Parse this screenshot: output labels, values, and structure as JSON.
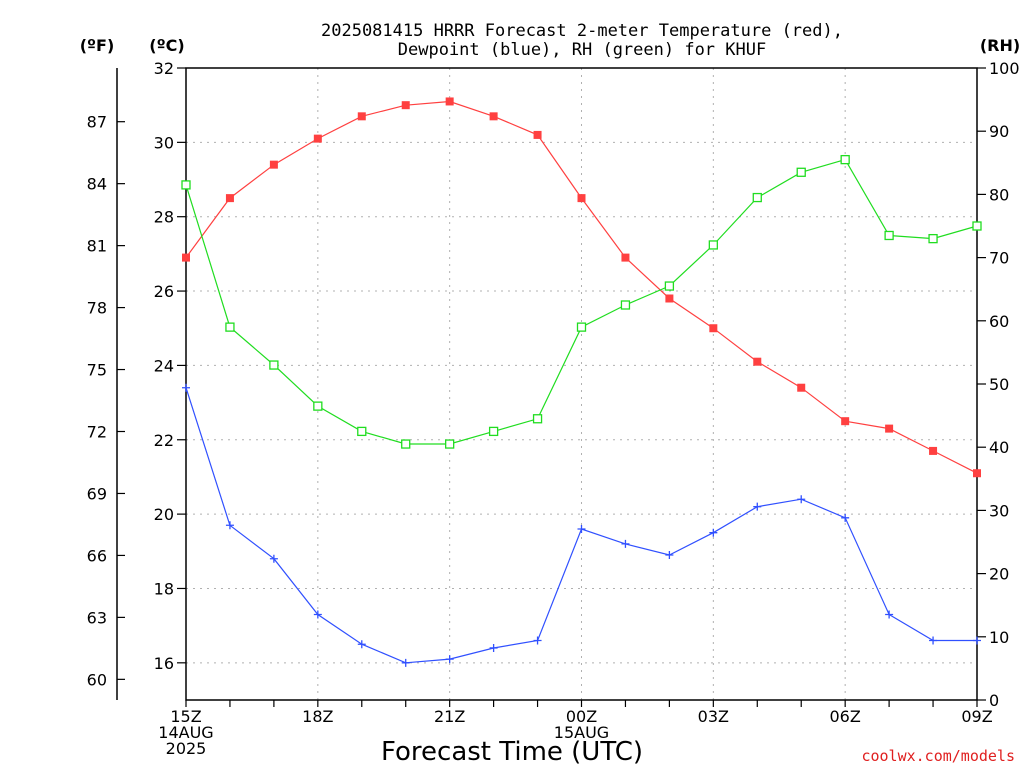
{
  "chart_data": {
    "type": "line",
    "title_line1": "2025081415 HRRR Forecast 2-meter Temperature (red),",
    "title_line2": "Dewpoint (blue), RH (green) for KHUF",
    "xlabel": "Forecast Time (UTC)",
    "credit": "coolwx.com/models",
    "units": {
      "fahrenheit": "(ºF)",
      "celsius": "(ºC)",
      "rh": "(RH)"
    },
    "x": [
      "15Z",
      "16Z",
      "17Z",
      "18Z",
      "19Z",
      "20Z",
      "21Z",
      "22Z",
      "23Z",
      "00Z",
      "01Z",
      "02Z",
      "03Z",
      "04Z",
      "05Z",
      "06Z",
      "07Z",
      "08Z",
      "09Z"
    ],
    "x_tick_labels": [
      {
        "index": 0,
        "lines": [
          "15Z",
          "14AUG",
          "2025"
        ]
      },
      {
        "index": 3,
        "lines": [
          "18Z"
        ]
      },
      {
        "index": 6,
        "lines": [
          "21Z"
        ]
      },
      {
        "index": 9,
        "lines": [
          "00Z",
          "15AUG"
        ]
      },
      {
        "index": 12,
        "lines": [
          "03Z"
        ]
      },
      {
        "index": 15,
        "lines": [
          "06Z"
        ]
      },
      {
        "index": 18,
        "lines": [
          "09Z"
        ]
      }
    ],
    "y_celsius": {
      "range": [
        15.0,
        32.0
      ],
      "ticks": [
        16,
        18,
        20,
        22,
        24,
        26,
        28,
        30,
        32
      ]
    },
    "y_fahrenheit": {
      "ticks": [
        60,
        63,
        66,
        69,
        72,
        75,
        78,
        81,
        84,
        87
      ]
    },
    "y_rh": {
      "range": [
        0,
        100
      ],
      "ticks": [
        0,
        10,
        20,
        30,
        40,
        50,
        60,
        70,
        80,
        90,
        100
      ]
    },
    "grid": true,
    "series": [
      {
        "key": "temperature",
        "axis": "celsius",
        "color": "#ff4040",
        "marker": "filled-square",
        "values": [
          26.9,
          28.5,
          29.4,
          30.1,
          30.7,
          31.0,
          31.1,
          30.7,
          30.2,
          28.5,
          26.9,
          25.8,
          25.0,
          24.1,
          23.4,
          22.5,
          22.3,
          21.7,
          21.1
        ]
      },
      {
        "key": "dewpoint",
        "axis": "celsius",
        "color": "#3050ff",
        "marker": "plus",
        "values": [
          23.4,
          19.7,
          18.8,
          17.3,
          16.5,
          16.0,
          16.1,
          16.4,
          16.6,
          19.6,
          19.2,
          18.9,
          19.5,
          20.2,
          20.4,
          19.9,
          17.3,
          16.6,
          16.6
        ]
      },
      {
        "key": "relative_humidity",
        "axis": "rh",
        "color": "#20dd20",
        "marker": "open-square",
        "values": [
          81.5,
          59.0,
          53.0,
          46.5,
          42.5,
          40.5,
          40.5,
          42.5,
          44.5,
          59.0,
          62.5,
          65.5,
          72.0,
          79.5,
          83.5,
          85.5,
          73.5,
          73.0,
          75.0
        ]
      }
    ]
  }
}
